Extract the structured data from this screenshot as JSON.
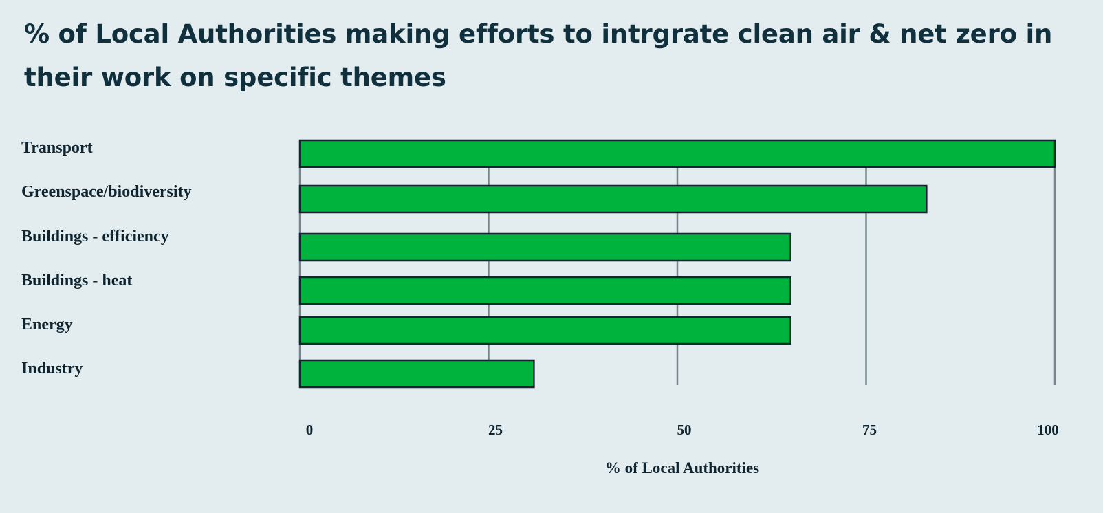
{
  "chart_data": {
    "type": "bar",
    "orientation": "horizontal",
    "title": "% of Local Authorities making efforts to intrgrate clean air & net zero in their work on specific themes",
    "xlabel": "% of Local Authorities",
    "ylabel": "",
    "categories": [
      "Transport",
      "Greenspace/biodiversity",
      "Buildings - efficiency",
      "Buildings - heat",
      "Energy",
      "Industry"
    ],
    "values": [
      100,
      83,
      65,
      65,
      65,
      31
    ],
    "xlim": [
      0,
      100
    ],
    "xticks": [
      "0",
      "25",
      "50",
      "75",
      "100"
    ],
    "grid": "vertical",
    "legend": "none",
    "colors": {
      "bar_fill": "#00b33c",
      "bar_stroke": "#12262f",
      "grid": "#76868c",
      "background": "#e3ecef",
      "title": "#10303e"
    }
  }
}
